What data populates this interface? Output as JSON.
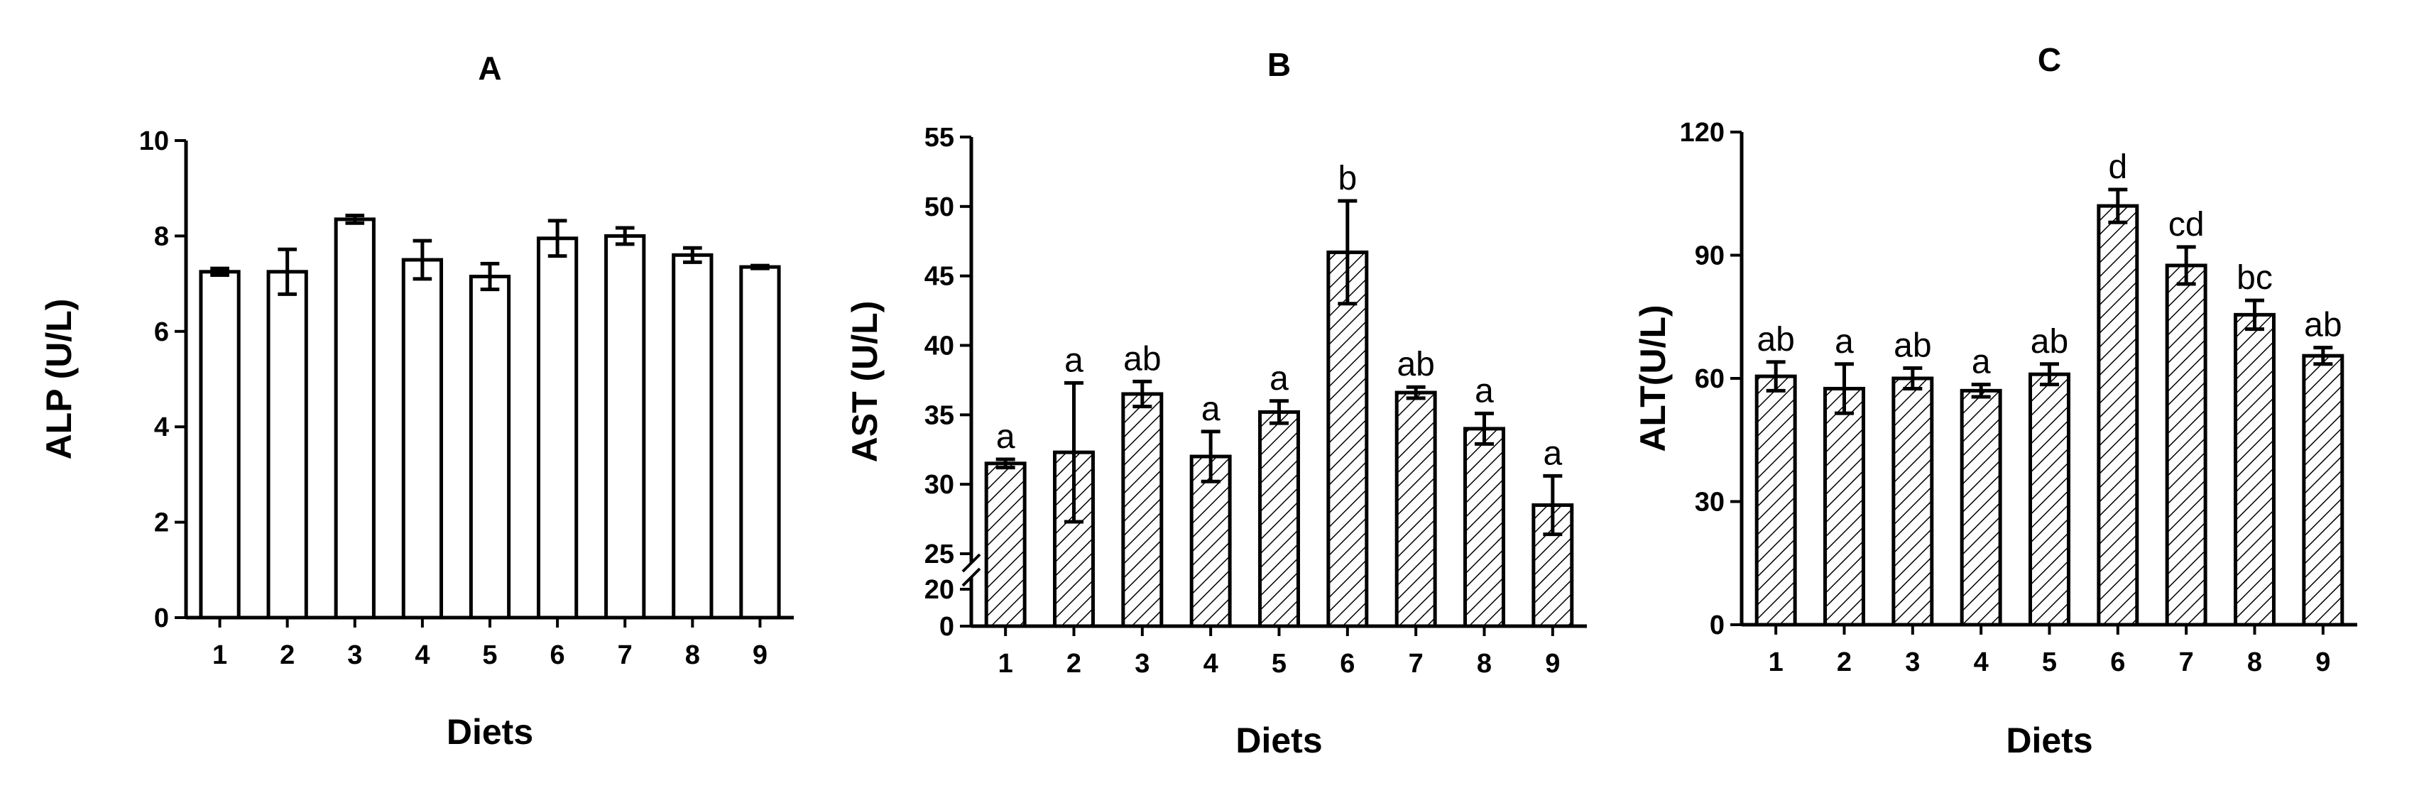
{
  "chart_data": [
    {
      "panel": "A",
      "type": "bar",
      "title": "A",
      "xlabel": "Diets",
      "ylabel": "ALP (U/L)",
      "categories": [
        "1",
        "2",
        "3",
        "4",
        "5",
        "6",
        "7",
        "8",
        "9"
      ],
      "values": [
        7.25,
        7.25,
        8.35,
        7.5,
        7.15,
        7.95,
        8.0,
        7.6,
        7.35
      ],
      "errors": [
        0.07,
        0.47,
        0.08,
        0.4,
        0.27,
        0.37,
        0.17,
        0.15,
        0.03
      ],
      "letters": [],
      "ylim": [
        0,
        10
      ],
      "yticks": [
        "0",
        "2",
        "4",
        "6",
        "8",
        "10"
      ],
      "fill": "none",
      "color": "#000000"
    },
    {
      "panel": "B",
      "type": "bar",
      "title": "B",
      "xlabel": "Diets",
      "ylabel": "AST (U/L)",
      "categories": [
        "1",
        "2",
        "3",
        "4",
        "5",
        "6",
        "7",
        "8",
        "9"
      ],
      "values": [
        31.5,
        32.3,
        36.5,
        32.0,
        35.2,
        46.7,
        36.6,
        34.0,
        28.5
      ],
      "errors": [
        0.3,
        5.0,
        0.9,
        1.8,
        0.8,
        3.7,
        0.4,
        1.1,
        2.1
      ],
      "letters": [
        "a",
        "a",
        "ab",
        "a",
        "a",
        "b",
        "ab",
        "a",
        "a"
      ],
      "axis_break": [
        20,
        25
      ],
      "ylim": [
        0,
        55
      ],
      "yticks": [
        "0",
        "20",
        "25",
        "30",
        "35",
        "40",
        "45",
        "50",
        "55"
      ],
      "fill": "hatch",
      "color": "#000000"
    },
    {
      "panel": "C",
      "type": "bar",
      "title": "C",
      "xlabel": "Diets",
      "ylabel": "ALT(U/L)",
      "categories": [
        "1",
        "2",
        "3",
        "4",
        "5",
        "6",
        "7",
        "8",
        "9"
      ],
      "values": [
        60.5,
        57.5,
        60.0,
        57.0,
        61.0,
        102.0,
        87.5,
        75.5,
        65.5
      ],
      "errors": [
        3.5,
        6.0,
        2.5,
        1.5,
        2.5,
        4.0,
        4.5,
        3.5,
        2.0
      ],
      "letters": [
        "ab",
        "a",
        "ab",
        "a",
        "ab",
        "d",
        "cd",
        "bc",
        "ab"
      ],
      "ylim": [
        0,
        120
      ],
      "yticks": [
        "0",
        "30",
        "60",
        "90",
        "120"
      ],
      "fill": "hatch",
      "color": "#000000"
    }
  ]
}
